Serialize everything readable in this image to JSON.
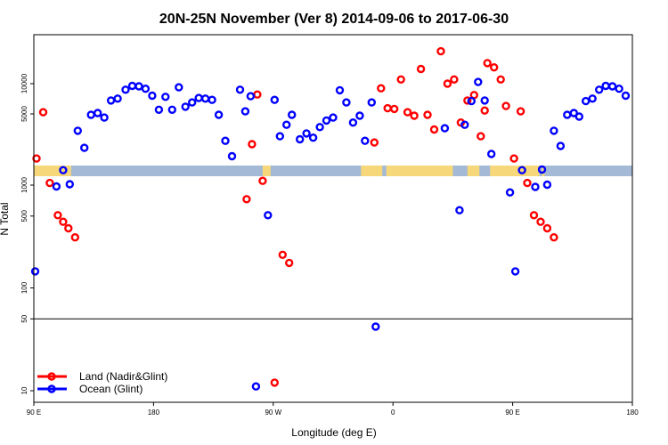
{
  "chart_data": {
    "type": "scatter",
    "title": "20N-25N November (Ver 8)   2014-09-06 to 2017-06-30",
    "xlabel": "Longitude (deg E)",
    "ylabel": "N Total",
    "x_ticks": [
      {
        "x": 90,
        "label": "90 E"
      },
      {
        "x": 180,
        "label": "180"
      },
      {
        "x": 270,
        "label": "90 W"
      },
      {
        "x": 360,
        "label": "0"
      },
      {
        "x": 450,
        "label": "90 E"
      },
      {
        "x": 540,
        "label": "180"
      }
    ],
    "y_ticks_lower": [
      10,
      50,
      100,
      500,
      1000
    ],
    "y_ticks_upper": [
      5000,
      10000
    ],
    "ref_line_y": 50,
    "xlim": [
      90,
      540
    ],
    "legend": [
      {
        "label": "Land (Nadir&Glint)",
        "color": "#ff0000"
      },
      {
        "label": "Ocean (Glint)",
        "color": "#0000ff"
      }
    ],
    "series": [
      {
        "name": "Land (Nadir&Glint)",
        "color": "#ff0000",
        "points": [
          [
            92,
            1800
          ],
          [
            97,
            5200
          ],
          [
            102,
            1050
          ],
          [
            108,
            510
          ],
          [
            112,
            440
          ],
          [
            116,
            380
          ],
          [
            121,
            310
          ],
          [
            250,
            730
          ],
          [
            254,
            2500
          ],
          [
            258,
            7800
          ],
          [
            262,
            1100
          ],
          [
            271,
            12
          ],
          [
            277,
            210
          ],
          [
            282,
            175
          ],
          [
            346,
            2600
          ],
          [
            351,
            9000
          ],
          [
            356,
            5700
          ],
          [
            361,
            5600
          ],
          [
            366,
            11000
          ],
          [
            371,
            5200
          ],
          [
            376,
            4800
          ],
          [
            381,
            14000
          ],
          [
            386,
            4900
          ],
          [
            391,
            3500
          ],
          [
            396,
            21000
          ],
          [
            401,
            10000
          ],
          [
            406,
            11000
          ],
          [
            411,
            4100
          ],
          [
            416,
            6800
          ],
          [
            421,
            7700
          ],
          [
            426,
            3000
          ],
          [
            429,
            5400
          ],
          [
            431,
            16000
          ],
          [
            436,
            14500
          ],
          [
            441,
            11000
          ],
          [
            445,
            6000
          ],
          [
            451,
            1800
          ],
          [
            456,
            5300
          ],
          [
            461,
            1050
          ],
          [
            466,
            510
          ],
          [
            471,
            440
          ],
          [
            476,
            380
          ],
          [
            481,
            310
          ]
        ]
      },
      {
        "name": "Ocean (Glint)",
        "color": "#0000ff",
        "points": [
          [
            91,
            145
          ],
          [
            107,
            970
          ],
          [
            112,
            1380
          ],
          [
            117,
            1020
          ],
          [
            123,
            3400
          ],
          [
            128,
            2300
          ],
          [
            133,
            4900
          ],
          [
            138,
            5100
          ],
          [
            143,
            4600
          ],
          [
            148,
            6800
          ],
          [
            153,
            7100
          ],
          [
            159,
            8700
          ],
          [
            164,
            9500
          ],
          [
            169,
            9400
          ],
          [
            174,
            8900
          ],
          [
            179,
            7600
          ],
          [
            184,
            5500
          ],
          [
            189,
            7400
          ],
          [
            194,
            5500
          ],
          [
            199,
            9200
          ],
          [
            204,
            5900
          ],
          [
            209,
            6500
          ],
          [
            214,
            7200
          ],
          [
            219,
            7100
          ],
          [
            224,
            6900
          ],
          [
            229,
            4900
          ],
          [
            234,
            2700
          ],
          [
            239,
            1900
          ],
          [
            245,
            8700
          ],
          [
            249,
            5300
          ],
          [
            253,
            7500
          ],
          [
            257,
            11
          ],
          [
            266,
            510
          ],
          [
            271,
            6900
          ],
          [
            275,
            3000
          ],
          [
            280,
            3900
          ],
          [
            284,
            4900
          ],
          [
            290,
            2800
          ],
          [
            295,
            3200
          ],
          [
            300,
            2900
          ],
          [
            305,
            3700
          ],
          [
            310,
            4300
          ],
          [
            315,
            4600
          ],
          [
            320,
            8600
          ],
          [
            325,
            6500
          ],
          [
            330,
            4100
          ],
          [
            335,
            4800
          ],
          [
            339,
            2700
          ],
          [
            344,
            6500
          ],
          [
            347,
            42
          ],
          [
            399,
            3600
          ],
          [
            410,
            570
          ],
          [
            414,
            3900
          ],
          [
            419,
            6700
          ],
          [
            424,
            10400
          ],
          [
            429,
            6800
          ],
          [
            434,
            2000
          ],
          [
            448,
            850
          ],
          [
            452,
            145
          ],
          [
            457,
            1380
          ],
          [
            467,
            960
          ],
          [
            472,
            1400
          ],
          [
            476,
            1010
          ],
          [
            481,
            3400
          ],
          [
            486,
            2400
          ],
          [
            491,
            4900
          ],
          [
            496,
            5100
          ],
          [
            500,
            4700
          ],
          [
            505,
            6700
          ],
          [
            510,
            7100
          ],
          [
            515,
            8700
          ],
          [
            520,
            9500
          ],
          [
            525,
            9400
          ],
          [
            530,
            8900
          ],
          [
            535,
            7600
          ]
        ]
      }
    ]
  }
}
